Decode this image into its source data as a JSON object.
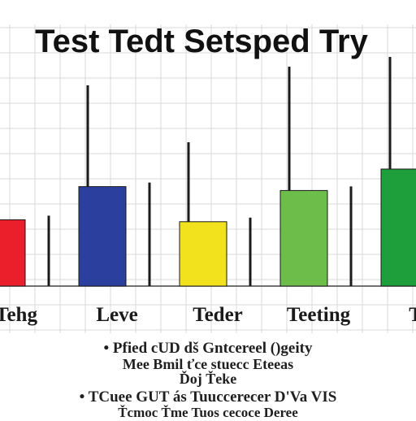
{
  "chart_data": {
    "type": "bar",
    "title": "Test Tedt Setsped Try",
    "categories": [
      "Tehg",
      "Leve",
      "Teder",
      "Teeting",
      "Te"
    ],
    "values": [
      1.7,
      2.55,
      1.65,
      2.45,
      3.0
    ],
    "colors": [
      "#ea1f2b",
      "#2b3f9e",
      "#f2e11d",
      "#6cbd4a",
      "#1f9e3c"
    ],
    "ylim": [
      0,
      6.5
    ],
    "xlabel": "",
    "ylabel": "",
    "grid": true,
    "legend": "none"
  },
  "caption": {
    "lines": [
      "• Pfied   cUD dš Gntcereel ()geity",
      "Mee Bmil   ťce stuecc Eteeas",
      "Ďoj Ťeke",
      "• TCuee   GUT   ás Tuuccerecer D'Va VIS",
      "Ťcmoc   Ťme Tuos cecoce Deree"
    ]
  }
}
